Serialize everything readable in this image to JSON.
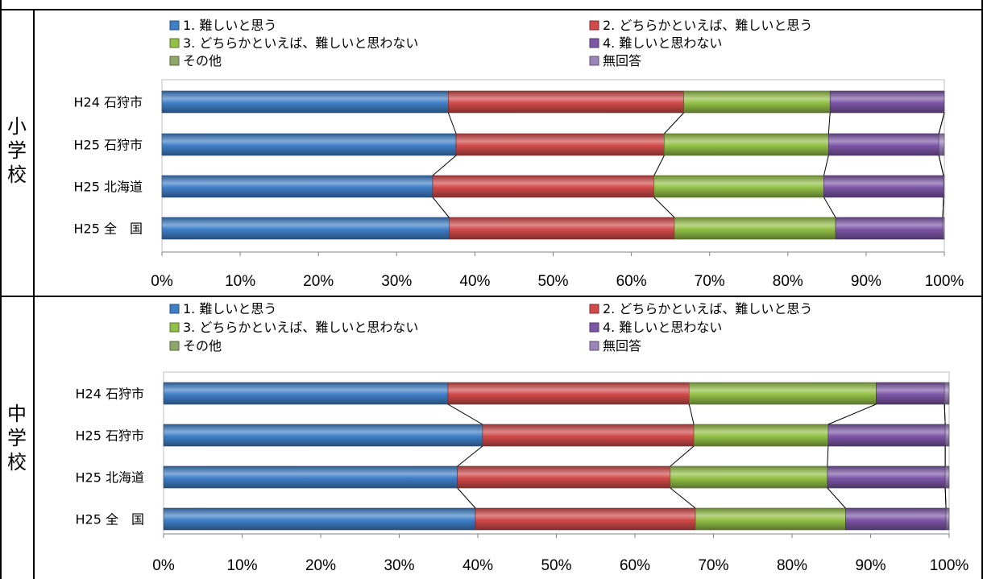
{
  "legend_entries": [
    "1. 難しいと思う",
    "2. どちらかといえば、難しいと思う",
    "3. どちらかといえば、難しいと思わない",
    "4. 難しいと思わない",
    "その他",
    "無回答"
  ],
  "series_colors": [
    "#3F7FC8",
    "#D24A4A",
    "#93C047",
    "#7D57A8",
    "#8FA86A",
    "#9C84B8"
  ],
  "groups": [
    {
      "label_chars": [
        "小",
        "学",
        "校"
      ]
    },
    {
      "label_chars": [
        "中",
        "学",
        "校"
      ]
    }
  ],
  "chart_data": [
    {
      "type": "bar",
      "orientation": "horizontal",
      "stacked": "percent",
      "categories": [
        "H24 石狩市",
        "H25 石狩市",
        "H25 北海道",
        "H25 全　国"
      ],
      "series": [
        {
          "name": "1. 難しいと思う",
          "values": [
            36.6,
            37.6,
            34.6,
            36.7
          ]
        },
        {
          "name": "2. どちらかといえば、難しいと思う",
          "values": [
            30.1,
            26.6,
            28.3,
            28.8
          ]
        },
        {
          "name": "3. どちらかといえば、難しいと思わない",
          "values": [
            18.7,
            21.0,
            21.7,
            20.6
          ]
        },
        {
          "name": "4. 難しいと思わない",
          "values": [
            14.6,
            14.1,
            15.3,
            13.7
          ]
        },
        {
          "name": "その他",
          "values": [
            0.0,
            0.0,
            0.0,
            0.0
          ]
        },
        {
          "name": "無回答",
          "values": [
            0.0,
            0.7,
            0.1,
            0.2
          ]
        }
      ],
      "xlim": [
        0,
        100
      ],
      "x_ticks": [
        "0%",
        "10%",
        "20%",
        "30%",
        "40%",
        "50%",
        "60%",
        "70%",
        "80%",
        "90%",
        "100%"
      ],
      "grid": false,
      "legend": "top",
      "series_lines": true
    },
    {
      "type": "bar",
      "orientation": "horizontal",
      "stacked": "percent",
      "categories": [
        "H24 石狩市",
        "H25 石狩市",
        "H25 北海道",
        "H25 全　国"
      ],
      "series": [
        {
          "name": "1. 難しいと思う",
          "values": [
            36.2,
            40.6,
            37.4,
            39.7
          ]
        },
        {
          "name": "2. どちらかといえば、難しいと思う",
          "values": [
            30.7,
            26.9,
            27.1,
            28.0
          ]
        },
        {
          "name": "3. どちらかといえば、難しいと思わない",
          "values": [
            23.8,
            17.1,
            20.0,
            19.1
          ]
        },
        {
          "name": "4. 難しいと思わない",
          "values": [
            8.7,
            14.9,
            15.0,
            12.8
          ]
        },
        {
          "name": "その他",
          "values": [
            0.0,
            0.0,
            0.0,
            0.0
          ]
        },
        {
          "name": "無回答",
          "values": [
            0.6,
            0.5,
            0.5,
            0.4
          ]
        }
      ],
      "xlim": [
        0,
        100
      ],
      "x_ticks": [
        "0%",
        "10%",
        "20%",
        "30%",
        "40%",
        "50%",
        "60%",
        "70%",
        "80%",
        "90%",
        "100%"
      ],
      "grid": false,
      "legend": "top",
      "series_lines": true
    }
  ]
}
